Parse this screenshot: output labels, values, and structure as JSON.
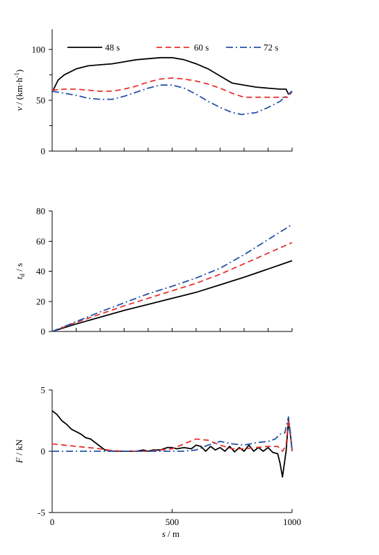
{
  "chart_data": [
    {
      "type": "line",
      "panel": "speed",
      "ylabel": "v / (km·h⁻¹)",
      "xlabel": "",
      "xlim": [
        0,
        1000
      ],
      "ylim": [
        0,
        120
      ],
      "yticks": [
        0,
        50,
        100
      ],
      "xticks": [
        0,
        100,
        200,
        300,
        400,
        500,
        600,
        700,
        800,
        900,
        1000
      ],
      "yminor": [
        25,
        75
      ],
      "show_x_tick_labels": false,
      "legend": "top",
      "series": [
        {
          "name": "48 s",
          "color": "#000000",
          "dash": "solid",
          "x": [
            0,
            25,
            50,
            100,
            150,
            200,
            250,
            300,
            350,
            400,
            450,
            500,
            550,
            600,
            650,
            700,
            750,
            800,
            850,
            900,
            950,
            975,
            985,
            1000
          ],
          "y": [
            58,
            70,
            75,
            81,
            84,
            85,
            86,
            88,
            90,
            91,
            92,
            92,
            90,
            86,
            81,
            74,
            67,
            65,
            63,
            62,
            61,
            61,
            56,
            59
          ]
        },
        {
          "name": "60 s",
          "color": "#e8302a",
          "dash": "dashed",
          "x": [
            0,
            50,
            100,
            150,
            200,
            250,
            300,
            350,
            400,
            450,
            500,
            550,
            600,
            650,
            700,
            750,
            800,
            850,
            900,
            950,
            985,
            1000
          ],
          "y": [
            60,
            61,
            61,
            60,
            59,
            59,
            61,
            64,
            68,
            71,
            72,
            71,
            69,
            66,
            62,
            57,
            53,
            53,
            53,
            53,
            53,
            59
          ]
        },
        {
          "name": "72 s",
          "color": "#2550a8",
          "dash": "dashdot",
          "x": [
            0,
            50,
            100,
            150,
            200,
            250,
            300,
            350,
            400,
            450,
            500,
            550,
            600,
            650,
            700,
            750,
            790,
            850,
            900,
            950,
            1000
          ],
          "y": [
            59,
            57,
            55,
            52,
            51,
            51,
            54,
            58,
            62,
            65,
            65,
            62,
            56,
            49,
            43,
            38,
            36,
            38,
            43,
            49,
            59
          ]
        }
      ]
    },
    {
      "type": "line",
      "panel": "time",
      "ylabel": "t_d / s",
      "xlabel": "",
      "xlim": [
        0,
        1000
      ],
      "ylim": [
        0,
        80
      ],
      "yticks": [
        0,
        20,
        40,
        60,
        80
      ],
      "xticks": [
        0,
        100,
        200,
        300,
        400,
        500,
        600,
        700,
        800,
        900,
        1000
      ],
      "yminor": [],
      "show_x_tick_labels": false,
      "series": [
        {
          "name": "48 s",
          "color": "#000000",
          "dash": "solid",
          "x": [
            0,
            100,
            200,
            300,
            400,
            500,
            600,
            700,
            800,
            900,
            1000
          ],
          "y": [
            0,
            5,
            9.5,
            14,
            18,
            22,
            26,
            31,
            36,
            41.5,
            47
          ]
        },
        {
          "name": "60 s",
          "color": "#e8302a",
          "dash": "dashed",
          "x": [
            0,
            100,
            200,
            300,
            400,
            500,
            600,
            700,
            800,
            900,
            1000
          ],
          "y": [
            0,
            6,
            11.5,
            17,
            22,
            27,
            32,
            38,
            45,
            52,
            59
          ]
        },
        {
          "name": "72 s",
          "color": "#2550a8",
          "dash": "dashdot",
          "x": [
            0,
            100,
            200,
            300,
            400,
            500,
            600,
            700,
            800,
            900,
            1000
          ],
          "y": [
            0,
            6.5,
            13,
            19,
            25,
            30,
            35.5,
            42,
            51,
            61,
            71
          ]
        }
      ]
    },
    {
      "type": "line",
      "panel": "force",
      "ylabel": "F / kN",
      "xlabel": "s / m",
      "xlim": [
        0,
        1000
      ],
      "ylim": [
        -5,
        5
      ],
      "yticks": [
        -5,
        0,
        5
      ],
      "xticks": [
        0,
        500,
        1000
      ],
      "yminor": [],
      "show_x_tick_labels": true,
      "series": [
        {
          "name": "48 s",
          "color": "#000000",
          "dash": "solid",
          "x": [
            0,
            20,
            40,
            60,
            80,
            100,
            120,
            140,
            160,
            180,
            200,
            220,
            240,
            260,
            300,
            350,
            380,
            400,
            420,
            450,
            480,
            500,
            520,
            550,
            580,
            600,
            620,
            640,
            660,
            680,
            700,
            720,
            740,
            760,
            780,
            800,
            820,
            840,
            860,
            880,
            900,
            920,
            940,
            950,
            960,
            975,
            985,
            995,
            1000
          ],
          "y": [
            3.3,
            3.0,
            2.5,
            2.2,
            1.8,
            1.6,
            1.4,
            1.1,
            1.0,
            0.7,
            0.4,
            0.1,
            0.05,
            0.0,
            0.0,
            0.0,
            0.1,
            0.0,
            0.1,
            0.1,
            0.3,
            0.3,
            0.2,
            0.3,
            0.2,
            0.5,
            0.4,
            0.0,
            0.4,
            0.1,
            0.3,
            0.0,
            0.4,
            -0.05,
            0.3,
            0.0,
            0.5,
            0.0,
            0.3,
            0.0,
            0.3,
            -0.1,
            -0.2,
            -1.0,
            -2.1,
            0.0,
            2.5,
            1.0,
            0.1
          ]
        },
        {
          "name": "60 s",
          "color": "#e8302a",
          "dash": "dashed",
          "x": [
            0,
            50,
            100,
            150,
            200,
            250,
            300,
            400,
            500,
            550,
            600,
            650,
            700,
            750,
            800,
            850,
            900,
            940,
            960,
            975,
            985,
            995,
            1000
          ],
          "y": [
            0.6,
            0.5,
            0.4,
            0.3,
            0.2,
            0.05,
            0.0,
            0.0,
            0.2,
            0.6,
            1.0,
            0.9,
            0.5,
            0.2,
            0.2,
            0.3,
            0.4,
            0.4,
            0.0,
            0.5,
            2.6,
            1.0,
            0.0
          ]
        },
        {
          "name": "72 s",
          "color": "#2550a8",
          "dash": "dashdot",
          "x": [
            0,
            100,
            200,
            300,
            400,
            500,
            550,
            600,
            650,
            700,
            750,
            800,
            850,
            900,
            930,
            950,
            970,
            985,
            995,
            1000
          ],
          "y": [
            0.0,
            0.0,
            0.0,
            0.0,
            0.0,
            0.0,
            0.0,
            0.1,
            0.5,
            0.8,
            0.6,
            0.5,
            0.7,
            0.8,
            1.0,
            1.4,
            1.5,
            2.8,
            1.2,
            0.0
          ]
        }
      ]
    }
  ]
}
